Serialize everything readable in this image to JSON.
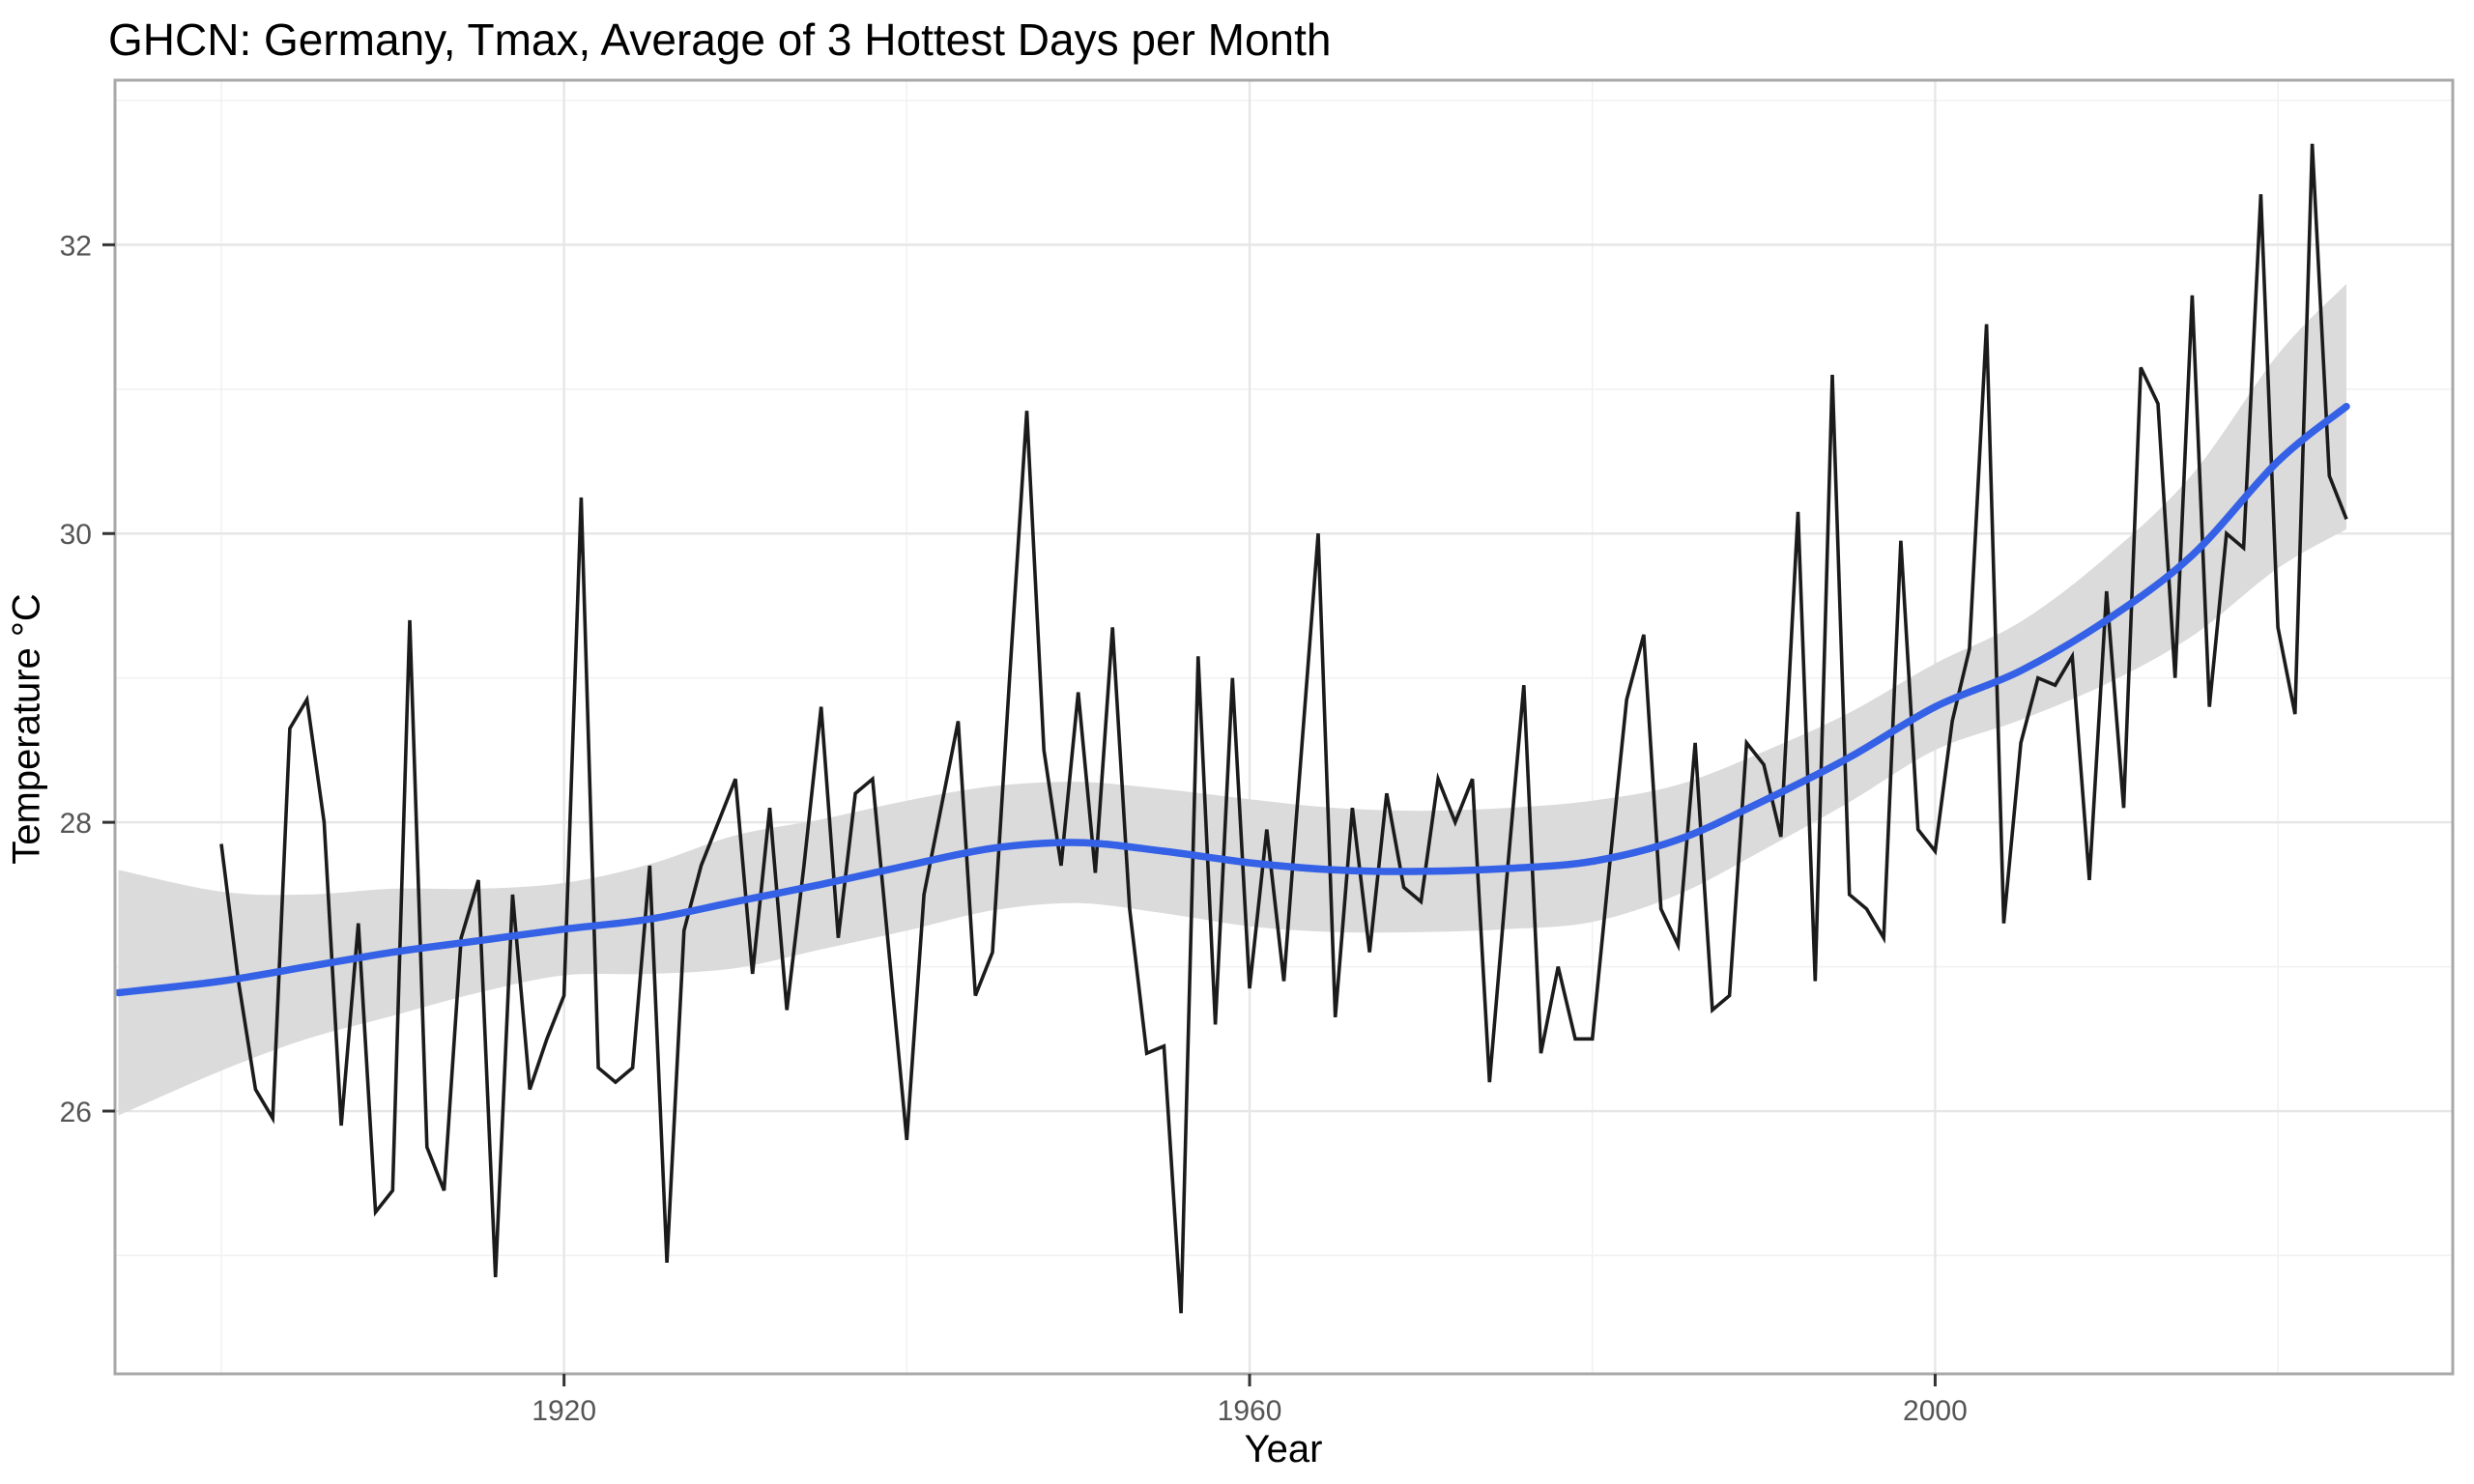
{
  "chart_data": {
    "type": "line",
    "title": "GHCN: Germany, Tmax, Average of 3 Hottest Days per Month",
    "xlabel": "Year",
    "ylabel": "Temperature °C",
    "xlim": [
      1893.8,
      2030.2
    ],
    "ylim": [
      24.18,
      33.14
    ],
    "x_ticks": [
      1920,
      1960,
      2000
    ],
    "x_minor": [
      1900,
      1940,
      1980,
      2020
    ],
    "y_ticks": [
      26,
      28,
      30,
      32
    ],
    "y_minor": [
      25,
      27,
      29,
      31,
      33
    ],
    "grid": "on",
    "legend": "none",
    "colors": {
      "annual_line": "#1b1b1b",
      "smooth_line": "#3561e6",
      "confidence_band": "#dbdbdb",
      "grid_major": "#e6e6e6",
      "grid_minor": "#f2f2f2",
      "panel_border": "#a8a8a8",
      "tick_mark": "#333333",
      "tick_label": "#555555"
    },
    "series": [
      {
        "name": "annual-tmax",
        "x_start": 1900,
        "x_step": 1,
        "values": [
          27.85,
          26.9,
          26.15,
          25.95,
          28.65,
          28.85,
          28.0,
          25.9,
          27.3,
          25.3,
          25.45,
          29.4,
          25.75,
          25.45,
          27.2,
          27.6,
          24.85,
          27.5,
          26.15,
          26.5,
          26.8,
          30.25,
          26.3,
          26.2,
          26.3,
          27.7,
          24.95,
          27.25,
          27.7,
          28.0,
          28.3,
          26.95,
          28.1,
          26.7,
          27.7,
          28.8,
          27.2,
          28.2,
          28.3,
          27.05,
          25.8,
          27.5,
          28.1,
          28.7,
          26.8,
          27.1,
          29.0,
          30.85,
          28.5,
          27.7,
          28.9,
          27.65,
          29.35,
          27.4,
          26.4,
          26.45,
          24.6,
          29.15,
          26.6,
          29.0,
          26.85,
          27.95,
          26.9,
          28.45,
          30.0,
          26.65,
          28.1,
          27.1,
          28.2,
          27.55,
          27.45,
          28.3,
          28.0,
          28.3,
          26.2,
          27.6,
          28.95,
          26.4,
          27.0,
          26.5,
          26.5,
          27.7,
          28.85,
          29.3,
          27.4,
          27.15,
          28.55,
          26.7,
          26.8,
          28.55,
          28.4,
          27.9,
          30.15,
          26.9,
          31.1,
          27.5,
          27.4,
          27.2,
          29.95,
          27.95,
          27.8,
          28.7,
          29.2,
          31.45,
          27.3,
          28.55,
          29.0,
          28.95,
          29.15,
          27.6,
          29.6,
          28.1,
          31.15,
          30.9,
          29.0,
          31.65,
          28.8,
          30.0,
          29.9,
          32.35,
          29.35,
          28.75,
          32.7,
          30.4,
          30.1
        ]
      },
      {
        "name": "smooth-trend",
        "x": [
          1894,
          1900,
          1905,
          1910,
          1915,
          1920,
          1925,
          1930,
          1935,
          1940,
          1945,
          1950,
          1955,
          1960,
          1965,
          1970,
          1975,
          1980,
          1985,
          1990,
          1995,
          2000,
          2005,
          2010,
          2015,
          2020,
          2024
        ],
        "values": [
          26.82,
          26.9,
          27.0,
          27.1,
          27.18,
          27.26,
          27.33,
          27.45,
          27.57,
          27.7,
          27.82,
          27.86,
          27.8,
          27.72,
          27.67,
          27.66,
          27.68,
          27.73,
          27.88,
          28.15,
          28.45,
          28.8,
          29.05,
          29.4,
          29.85,
          30.5,
          30.88
        ]
      }
    ],
    "band": {
      "name": "confidence-band",
      "x": [
        1894,
        1900,
        1905,
        1910,
        1915,
        1920,
        1925,
        1930,
        1935,
        1940,
        1945,
        1950,
        1955,
        1960,
        1965,
        1970,
        1975,
        1980,
        1985,
        1990,
        1995,
        2000,
        2005,
        2010,
        2015,
        2020,
        2024
      ],
      "lower": [
        25.97,
        26.28,
        26.5,
        26.66,
        26.82,
        26.94,
        26.95,
        26.99,
        27.12,
        27.25,
        27.39,
        27.44,
        27.37,
        27.28,
        27.24,
        27.24,
        27.26,
        27.31,
        27.5,
        27.81,
        28.14,
        28.5,
        28.71,
        28.96,
        29.29,
        29.76,
        30.03
      ],
      "upper": [
        27.67,
        27.52,
        27.5,
        27.54,
        27.54,
        27.58,
        27.71,
        27.91,
        28.02,
        28.15,
        28.25,
        28.28,
        28.23,
        28.16,
        28.1,
        28.08,
        28.1,
        28.15,
        28.26,
        28.49,
        28.76,
        29.1,
        29.39,
        29.84,
        30.41,
        31.24,
        31.73
      ]
    }
  }
}
